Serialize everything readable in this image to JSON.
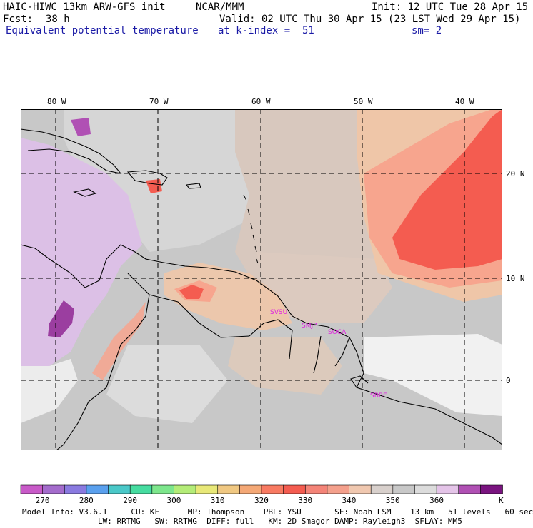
{
  "header": {
    "model_title": "HAIC-HIWC 13km ARW-GFS init",
    "org": "NCAR/MMM",
    "init": "Init: 12 UTC Tue 28 Apr 15",
    "fcst_label": "Fcst:",
    "fcst_value": "38 h",
    "valid": "Valid: 02 UTC Thu 30 Apr 15 (23 LST Wed 29 Apr 15)",
    "field": "Equivalent potential temperature",
    "level": "at k-index =  51",
    "smooth": "sm= 2"
  },
  "map": {
    "lon_labels": [
      "80 W",
      "70 W",
      "60 W",
      "50 W",
      "40 W"
    ],
    "lat_labels": [
      "20 N",
      "10 N",
      "0"
    ],
    "stations": [
      "SVSU",
      "SMJP",
      "SOCA",
      "SBBE"
    ],
    "colors": {
      "land_gray": "#c8c8c8",
      "light_gray": "#d9d9d9",
      "tan": "#d8c8be",
      "peach": "#efc6a8",
      "salmon": "#f7a58e",
      "red": "#f45c50",
      "lavender": "#dcc0e6",
      "purple": "#9b3ea0",
      "white": "#f1f1f1",
      "station_text": "#e020e0"
    }
  },
  "colorbar": {
    "colors": [
      "#c85ac8",
      "#a46ccc",
      "#8a7ae0",
      "#5aa0ee",
      "#4ac8c8",
      "#46dca0",
      "#7de68c",
      "#b4ec78",
      "#e8e878",
      "#f0c882",
      "#f4a876",
      "#f87a62",
      "#f45c50",
      "#f48478",
      "#f4a08c",
      "#f0c8b0",
      "#d8d0cc",
      "#c8c8c8",
      "#dcdcdc",
      "#e4c4e8",
      "#b050b4",
      "#7a1480"
    ],
    "tick_labels": [
      "270",
      "280",
      "290",
      "300",
      "310",
      "320",
      "330",
      "340",
      "350",
      "360"
    ],
    "unit": "K"
  },
  "model_info": {
    "line1": "Model Info: V3.6.1     CU: KF      MP: Thompson    PBL: YSU       SF: Noah LSM    13 km   51 levels   60 sec",
    "line2": "                LW: RRTMG   SW: RRTMG  DIFF: full   KM: 2D Smagor DAMP: Rayleigh3  SFLAY: MM5"
  }
}
